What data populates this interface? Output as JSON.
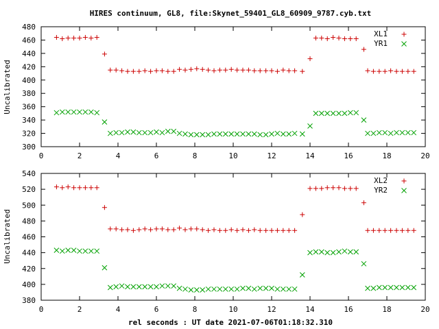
{
  "chart_data": {
    "title": "HIRES continuum, GL8, file:Skynet_59401_GL8_60909_9787.cyb.txt",
    "xlabel": "rel seconds : UT date 2021-07-06T01:18:32.310",
    "colors": {
      "plus": "#cc0000",
      "cross": "#00a000"
    },
    "panels": [
      {
        "type": "scatter",
        "ylabel": "Uncalibrated",
        "xlim": [
          0,
          20
        ],
        "ylim": [
          300,
          480
        ],
        "xticks": [
          0,
          2,
          4,
          6,
          8,
          10,
          12,
          14,
          16,
          18,
          20
        ],
        "yticks": [
          300,
          320,
          340,
          360,
          380,
          400,
          420,
          440,
          460,
          480
        ],
        "legend": "top-right",
        "grid": false,
        "series": [
          {
            "name": "XL1",
            "marker": "plus",
            "x": [
              0.8,
              1.1,
              1.4,
              1.7,
              2.0,
              2.3,
              2.6,
              2.9,
              3.3,
              3.6,
              3.9,
              4.2,
              4.5,
              4.8,
              5.1,
              5.4,
              5.7,
              6.0,
              6.3,
              6.6,
              6.9,
              7.2,
              7.5,
              7.8,
              8.1,
              8.4,
              8.7,
              9.0,
              9.3,
              9.6,
              9.9,
              10.2,
              10.5,
              10.8,
              11.1,
              11.4,
              11.7,
              12.0,
              12.3,
              12.6,
              12.9,
              13.2,
              13.6,
              14.0,
              14.3,
              14.6,
              14.9,
              15.2,
              15.5,
              15.8,
              16.1,
              16.4,
              16.8,
              17.0,
              17.3,
              17.6,
              17.9,
              18.2,
              18.5,
              18.8,
              19.1,
              19.4
            ],
            "y": [
              464,
              462,
              463,
              463,
              463,
              464,
              463,
              464,
              439,
              415,
              415,
              414,
              413,
              413,
              413,
              414,
              413,
              414,
              414,
              413,
              413,
              416,
              415,
              416,
              417,
              416,
              415,
              414,
              415,
              415,
              416,
              415,
              415,
              415,
              414,
              414,
              414,
              414,
              413,
              415,
              414,
              414,
              413,
              432,
              463,
              463,
              462,
              464,
              463,
              462,
              462,
              462,
              446,
              414,
              413,
              413,
              413,
              414,
              413,
              413,
              413,
              413
            ]
          },
          {
            "name": "YR1",
            "marker": "cross",
            "x": [
              0.8,
              1.1,
              1.4,
              1.7,
              2.0,
              2.3,
              2.6,
              2.9,
              3.3,
              3.6,
              3.9,
              4.2,
              4.5,
              4.8,
              5.1,
              5.4,
              5.7,
              6.0,
              6.3,
              6.6,
              6.9,
              7.2,
              7.5,
              7.8,
              8.1,
              8.4,
              8.7,
              9.0,
              9.3,
              9.6,
              9.9,
              10.2,
              10.5,
              10.8,
              11.1,
              11.4,
              11.7,
              12.0,
              12.3,
              12.6,
              12.9,
              13.2,
              13.6,
              14.0,
              14.3,
              14.6,
              14.9,
              15.2,
              15.5,
              15.8,
              16.1,
              16.4,
              16.8,
              17.0,
              17.3,
              17.6,
              17.9,
              18.2,
              18.5,
              18.8,
              19.1,
              19.4
            ],
            "y": [
              351,
              352,
              352,
              352,
              352,
              352,
              352,
              351,
              337,
              320,
              321,
              321,
              322,
              322,
              321,
              321,
              321,
              322,
              321,
              323,
              323,
              320,
              319,
              318,
              318,
              318,
              318,
              319,
              319,
              319,
              319,
              319,
              319,
              319,
              319,
              318,
              318,
              319,
              320,
              319,
              319,
              320,
              319,
              331,
              350,
              350,
              350,
              350,
              350,
              350,
              351,
              351,
              340,
              320,
              320,
              321,
              321,
              320,
              321,
              321,
              321,
              321
            ]
          }
        ]
      },
      {
        "type": "scatter",
        "ylabel": "Uncalibrated",
        "xlim": [
          0,
          20
        ],
        "ylim": [
          380,
          540
        ],
        "xticks": [
          0,
          2,
          4,
          6,
          8,
          10,
          12,
          14,
          16,
          18,
          20
        ],
        "yticks": [
          380,
          400,
          420,
          440,
          460,
          480,
          500,
          520,
          540
        ],
        "legend": "top-right",
        "grid": false,
        "series": [
          {
            "name": "XL2",
            "marker": "plus",
            "x": [
              0.8,
              1.1,
              1.4,
              1.7,
              2.0,
              2.3,
              2.6,
              2.9,
              3.3,
              3.6,
              3.9,
              4.2,
              4.5,
              4.8,
              5.1,
              5.4,
              5.7,
              6.0,
              6.3,
              6.6,
              6.9,
              7.2,
              7.5,
              7.8,
              8.1,
              8.4,
              8.7,
              9.0,
              9.3,
              9.6,
              9.9,
              10.2,
              10.5,
              10.8,
              11.1,
              11.4,
              11.7,
              12.0,
              12.3,
              12.6,
              12.9,
              13.2,
              13.6,
              14.0,
              14.3,
              14.6,
              14.9,
              15.2,
              15.5,
              15.8,
              16.1,
              16.4,
              16.8,
              17.0,
              17.3,
              17.6,
              17.9,
              18.2,
              18.5,
              18.8,
              19.1,
              19.4
            ],
            "y": [
              523,
              522,
              523,
              522,
              522,
              522,
              522,
              522,
              497,
              470,
              470,
              469,
              469,
              468,
              469,
              470,
              469,
              470,
              470,
              469,
              469,
              471,
              469,
              470,
              470,
              469,
              468,
              469,
              468,
              468,
              469,
              468,
              469,
              468,
              469,
              468,
              468,
              468,
              468,
              468,
              468,
              468,
              488,
              521,
              521,
              521,
              522,
              522,
              522,
              521,
              521,
              521,
              503,
              468,
              468,
              468,
              468,
              468,
              468,
              468,
              468,
              468
            ]
          },
          {
            "name": "YR2",
            "marker": "cross",
            "x": [
              0.8,
              1.1,
              1.4,
              1.7,
              2.0,
              2.3,
              2.6,
              2.9,
              3.3,
              3.6,
              3.9,
              4.2,
              4.5,
              4.8,
              5.1,
              5.4,
              5.7,
              6.0,
              6.3,
              6.6,
              6.9,
              7.2,
              7.5,
              7.8,
              8.1,
              8.4,
              8.7,
              9.0,
              9.3,
              9.6,
              9.9,
              10.2,
              10.5,
              10.8,
              11.1,
              11.4,
              11.7,
              12.0,
              12.3,
              12.6,
              12.9,
              13.2,
              13.6,
              14.0,
              14.3,
              14.6,
              14.9,
              15.2,
              15.5,
              15.8,
              16.1,
              16.4,
              16.8,
              17.0,
              17.3,
              17.6,
              17.9,
              18.2,
              18.5,
              18.8,
              19.1,
              19.4
            ],
            "y": [
              443,
              442,
              443,
              443,
              442,
              442,
              442,
              442,
              421,
              396,
              397,
              398,
              397,
              397,
              397,
              397,
              397,
              397,
              398,
              398,
              398,
              395,
              394,
              393,
              393,
              393,
              394,
              394,
              394,
              394,
              394,
              394,
              395,
              395,
              394,
              395,
              395,
              395,
              394,
              394,
              394,
              394,
              412,
              440,
              441,
              441,
              440,
              440,
              441,
              442,
              441,
              441,
              426,
              395,
              395,
              396,
              396,
              396,
              396,
              396,
              396,
              396
            ]
          }
        ]
      }
    ]
  }
}
